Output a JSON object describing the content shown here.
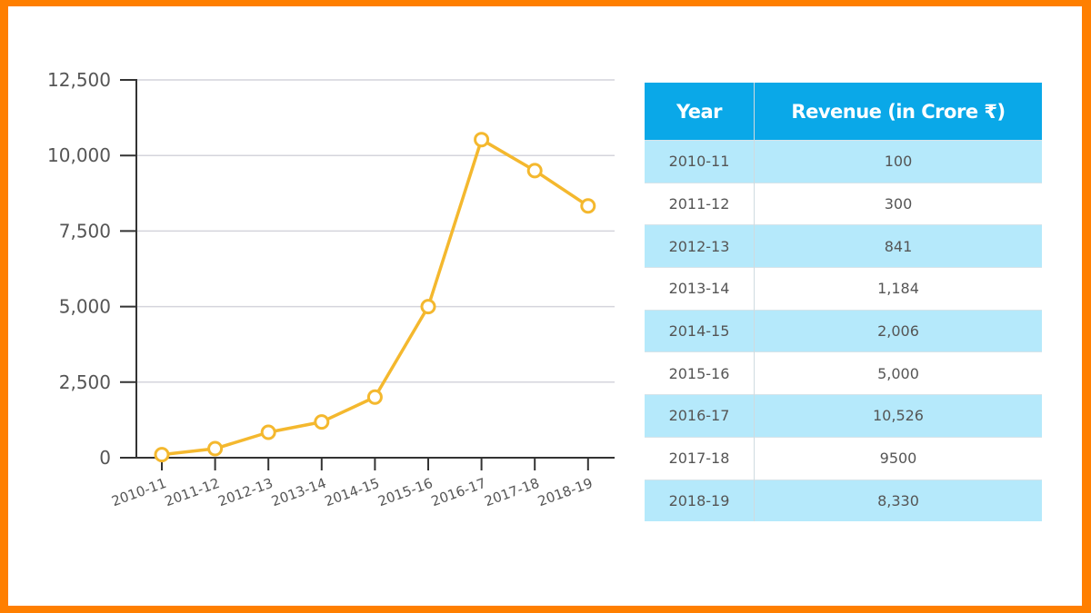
{
  "chart_data": {
    "type": "line",
    "title": "",
    "xlabel": "",
    "ylabel": "",
    "categories": [
      "2010-11",
      "2011-12",
      "2012-13",
      "2013-14",
      "2014-15",
      "2015-16",
      "2016-17",
      "2017-18",
      "2018-19"
    ],
    "series": [
      {
        "name": "Revenue (in Crore ₹)",
        "values": [
          100,
          300,
          841,
          1184,
          2006,
          5000,
          10526,
          9500,
          8330
        ]
      }
    ],
    "ylim": [
      0,
      12500
    ],
    "yticks": [
      0,
      2500,
      5000,
      7500,
      10000,
      12500
    ],
    "ytick_labels": [
      "0",
      "2,500",
      "5,000",
      "7,500",
      "10,000",
      "12,500"
    ],
    "grid": true,
    "line_color": "#f4b82e"
  },
  "table": {
    "headers": [
      "Year",
      "Revenue (in Crore ₹)"
    ],
    "rows": [
      [
        "2010-11",
        "100"
      ],
      [
        "2011-12",
        "300"
      ],
      [
        "2012-13",
        "841"
      ],
      [
        "2013-14",
        "1,184"
      ],
      [
        "2014-15",
        "2,006"
      ],
      [
        "2015-16",
        "5,000"
      ],
      [
        "2016-17",
        "10,526"
      ],
      [
        "2017-18",
        "9500"
      ],
      [
        "2018-19",
        "8,330"
      ]
    ]
  }
}
